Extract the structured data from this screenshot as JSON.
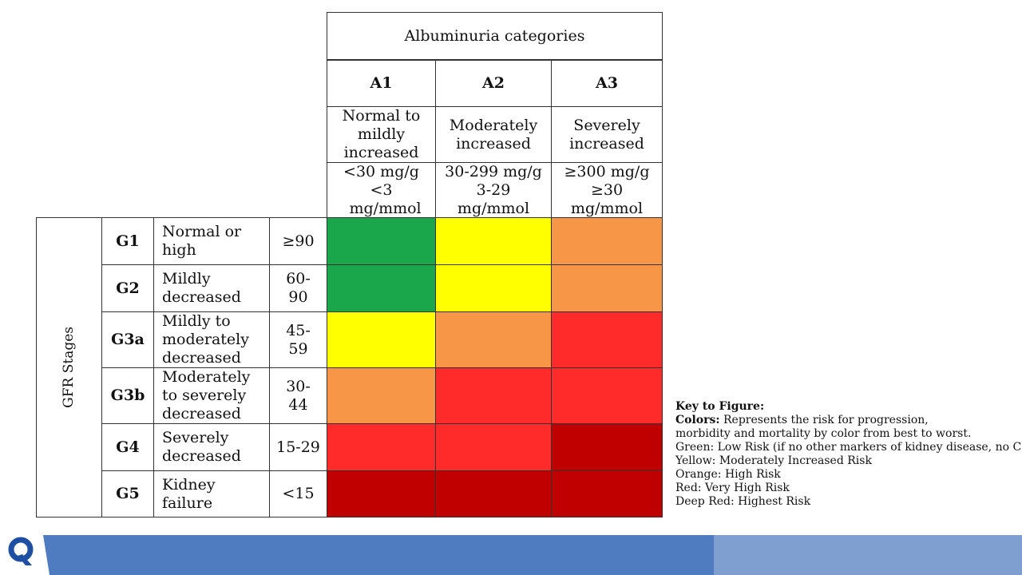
{
  "header": {
    "albuminuria_title": "Albuminuria categories",
    "categories": [
      {
        "code": "A1",
        "desc": "Normal to mildly increased",
        "range1": "<30 mg/g",
        "range2": "<3 mg/mmol"
      },
      {
        "code": "A2",
        "desc": "Moderately increased",
        "range1": "30-299 mg/g",
        "range2": "3-29 mg/mmol"
      },
      {
        "code": "A3",
        "desc": "Severely increased",
        "range1": "≥300 mg/g",
        "range2": "≥30 mg/mmol"
      }
    ]
  },
  "gfr": {
    "title": "GFR Stages",
    "stages": [
      {
        "code": "G1",
        "desc": "Normal or high",
        "value": "≥90",
        "risks": [
          "green",
          "yellow",
          "orange"
        ]
      },
      {
        "code": "G2",
        "desc": "Mildly decreased",
        "value": "60-90",
        "risks": [
          "green",
          "yellow",
          "orange"
        ]
      },
      {
        "code": "G3a",
        "desc": "Mildly to moderately decreased",
        "value": "45-59",
        "risks": [
          "yellow",
          "orange",
          "red"
        ]
      },
      {
        "code": "G3b",
        "desc": "Moderately to severely decreased",
        "value": "30-44",
        "risks": [
          "orange",
          "red",
          "red"
        ]
      },
      {
        "code": "G4",
        "desc": "Severely decreased",
        "value": "15-29",
        "risks": [
          "red",
          "red",
          "deep-red"
        ]
      },
      {
        "code": "G5",
        "desc": "Kidney failure",
        "value": "<15",
        "risks": [
          "deep-red",
          "deep-red",
          "deep-red"
        ]
      }
    ]
  },
  "colors": {
    "green": "#1aa64b",
    "yellow": "#ffff00",
    "orange": "#f79646",
    "red": "#ff2a2a",
    "deep-red": "#c00000"
  },
  "key": {
    "title": "Key to Figure:",
    "colors_label": "Colors:",
    "colors_text": " Represents the risk for progression,",
    "colors_text2": "morbidity and mortality by color from best to worst.",
    "items": [
      "Green:  Low Risk (if no other markers of kidney disease, no CKD)",
      "Yellow:  Moderately Increased Risk",
      "Orange:  High Risk",
      "Red:  Very High Risk",
      "Deep Red:  Highest Risk"
    ]
  },
  "footer": {
    "logo_icon": "q-logo-icon",
    "bar_color": "#4f7bc0",
    "bar_light_color": "#7f9fd1"
  }
}
